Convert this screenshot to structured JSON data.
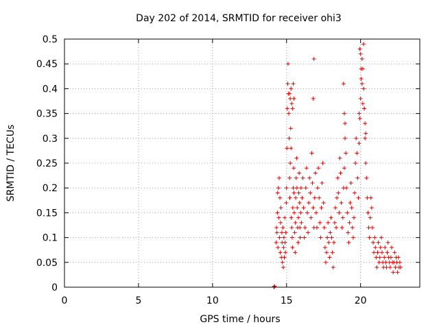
{
  "chart_data": {
    "type": "scatter",
    "title": "Day 202 of 2014, SRMTID for receiver ohi3",
    "xlabel": "GPS time / hours",
    "ylabel": "SRMTID / TECUs",
    "xlim": [
      0,
      24
    ],
    "ylim": [
      0,
      0.5
    ],
    "xticks": [
      0,
      5,
      10,
      15,
      20
    ],
    "yticks": [
      0,
      0.05,
      0.1,
      0.15,
      0.2,
      0.25,
      0.3,
      0.35,
      0.4,
      0.45,
      0.5
    ],
    "xtick_labels": [
      "0",
      "5",
      "10",
      "15",
      "20"
    ],
    "ytick_labels": [
      "0",
      "0.05",
      "0.1",
      "0.15",
      "0.2",
      "0.25",
      "0.3",
      "0.35",
      "0.4",
      "0.45",
      "0.5"
    ],
    "grid": true,
    "marker": "+",
    "color": "#e00000",
    "series": [
      {
        "name": "ohi3",
        "x": [
          14.15,
          14.17,
          14.19,
          14.3,
          14.32,
          14.35,
          14.38,
          14.4,
          14.42,
          14.45,
          14.47,
          14.5,
          14.52,
          14.55,
          14.58,
          14.6,
          14.62,
          14.65,
          14.68,
          14.7,
          14.72,
          14.75,
          14.78,
          14.8,
          14.82,
          14.85,
          14.88,
          14.9,
          14.92,
          14.95,
          14.98,
          15.0,
          15.02,
          15.05,
          15.08,
          15.1,
          15.12,
          15.15,
          15.18,
          15.2,
          15.22,
          15.25,
          15.28,
          15.3,
          15.32,
          15.35,
          15.38,
          15.4,
          15.42,
          15.45,
          15.48,
          15.5,
          15.52,
          15.55,
          15.58,
          15.6,
          15.62,
          15.65,
          15.68,
          15.7,
          15.72,
          15.75,
          15.78,
          15.8,
          15.82,
          15.85,
          15.88,
          15.9,
          15.92,
          15.95,
          15.98,
          16.0,
          16.05,
          16.1,
          16.15,
          16.2,
          16.25,
          16.3,
          16.35,
          16.4,
          16.45,
          16.5,
          16.55,
          16.6,
          16.65,
          16.7,
          16.75,
          16.8,
          16.85,
          16.9,
          16.95,
          17.0,
          17.05,
          17.1,
          17.15,
          17.2,
          17.25,
          17.3,
          17.35,
          17.4,
          17.45,
          17.5,
          17.55,
          17.6,
          17.65,
          17.7,
          17.75,
          17.8,
          17.85,
          17.9,
          17.95,
          18.0,
          18.05,
          18.1,
          18.15,
          18.2,
          18.25,
          18.3,
          18.35,
          18.4,
          18.45,
          18.5,
          18.55,
          18.6,
          18.65,
          18.7,
          18.75,
          18.8,
          18.85,
          18.9,
          18.95,
          19.0,
          19.05,
          19.1,
          19.15,
          19.2,
          19.25,
          19.3,
          19.35,
          19.4,
          19.45,
          19.5,
          19.55,
          19.6,
          19.65,
          19.7,
          19.75,
          19.8,
          19.85,
          19.9,
          19.95,
          20.0,
          20.05,
          20.1,
          20.15,
          20.2,
          20.25,
          20.3,
          20.35,
          20.4,
          20.45,
          20.5,
          20.55,
          20.6,
          20.65,
          20.7,
          20.75,
          20.8,
          20.85,
          20.9,
          20.95,
          21.0,
          21.05,
          21.1,
          21.15,
          21.2,
          21.25,
          21.3,
          21.35,
          21.4,
          21.45,
          21.5,
          21.55,
          21.6,
          21.65,
          21.7,
          21.75,
          21.8,
          21.85,
          21.9,
          21.95,
          22.0,
          22.05,
          22.1,
          22.15,
          22.2,
          22.25,
          22.3,
          22.35,
          22.4,
          22.45,
          22.5,
          22.55,
          22.6,
          22.65,
          22.7,
          15.2,
          15.25,
          15.3,
          15.35,
          15.4,
          15.45,
          15.5,
          16.8,
          16.85,
          19.9,
          19.95,
          20.0,
          20.05,
          20.1,
          20.15,
          20.2,
          20.25,
          20.3,
          20.35,
          18.85,
          18.9,
          18.95
        ],
        "y": [
          0.0,
          0.001,
          0.002,
          0.09,
          0.12,
          0.11,
          0.15,
          0.19,
          0.08,
          0.2,
          0.14,
          0.22,
          0.1,
          0.18,
          0.07,
          0.13,
          0.16,
          0.06,
          0.11,
          0.09,
          0.05,
          0.12,
          0.04,
          0.08,
          0.1,
          0.06,
          0.14,
          0.09,
          0.07,
          0.11,
          0.17,
          0.2,
          0.28,
          0.36,
          0.41,
          0.45,
          0.39,
          0.35,
          0.3,
          0.22,
          0.18,
          0.25,
          0.32,
          0.28,
          0.14,
          0.12,
          0.1,
          0.08,
          0.16,
          0.2,
          0.24,
          0.19,
          0.15,
          0.11,
          0.07,
          0.13,
          0.18,
          0.22,
          0.26,
          0.2,
          0.16,
          0.12,
          0.09,
          0.14,
          0.19,
          0.23,
          0.17,
          0.12,
          0.1,
          0.15,
          0.2,
          0.13,
          0.18,
          0.22,
          0.16,
          0.1,
          0.12,
          0.2,
          0.24,
          0.15,
          0.11,
          0.17,
          0.22,
          0.19,
          0.14,
          0.27,
          0.21,
          0.16,
          0.12,
          0.18,
          0.23,
          0.15,
          0.12,
          0.2,
          0.24,
          0.18,
          0.13,
          0.1,
          0.16,
          0.21,
          0.25,
          0.17,
          0.12,
          0.08,
          0.05,
          0.07,
          0.1,
          0.13,
          0.09,
          0.06,
          0.11,
          0.14,
          0.1,
          0.07,
          0.04,
          0.09,
          0.13,
          0.16,
          0.12,
          0.18,
          0.22,
          0.19,
          0.15,
          0.26,
          0.23,
          0.17,
          0.12,
          0.14,
          0.2,
          0.24,
          0.3,
          0.27,
          0.2,
          0.15,
          0.11,
          0.09,
          0.13,
          0.17,
          0.21,
          0.16,
          0.12,
          0.1,
          0.14,
          0.19,
          0.25,
          0.3,
          0.27,
          0.22,
          0.18,
          0.29,
          0.34,
          0.38,
          0.42,
          0.46,
          0.44,
          0.4,
          0.36,
          0.3,
          0.25,
          0.22,
          0.18,
          0.15,
          0.12,
          0.1,
          0.14,
          0.18,
          0.16,
          0.12,
          0.09,
          0.07,
          0.1,
          0.08,
          0.06,
          0.04,
          0.07,
          0.09,
          0.05,
          0.06,
          0.08,
          0.1,
          0.07,
          0.05,
          0.04,
          0.06,
          0.08,
          0.05,
          0.04,
          0.07,
          0.09,
          0.06,
          0.05,
          0.04,
          0.06,
          0.08,
          0.05,
          0.03,
          0.05,
          0.07,
          0.04,
          0.06,
          0.05,
          0.03,
          0.06,
          0.04,
          0.05,
          0.04,
          0.39,
          0.38,
          0.4,
          0.37,
          0.36,
          0.41,
          0.38,
          0.38,
          0.46,
          0.35,
          0.48,
          0.47,
          0.44,
          0.41,
          0.37,
          0.49,
          0.36,
          0.33,
          0.31,
          0.41,
          0.35,
          0.33
        ]
      }
    ]
  }
}
